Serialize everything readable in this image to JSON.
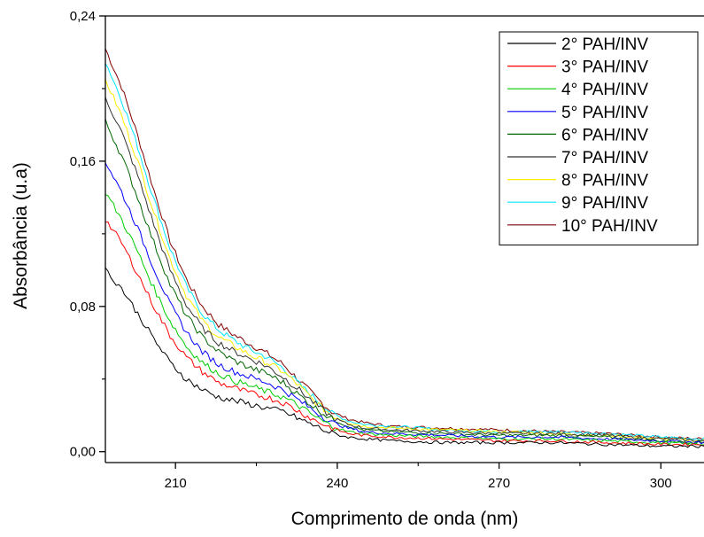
{
  "chart_data": {
    "type": "line",
    "title": "",
    "xlabel": "Comprimento de onda (nm)",
    "ylabel": "Absorbância (u.a)",
    "xlim": [
      197,
      308
    ],
    "ylim": [
      -0.006,
      0.24
    ],
    "x_ticks": [
      210,
      240,
      270,
      300
    ],
    "y_ticks": [
      0.0,
      0.08,
      0.16,
      0.24
    ],
    "x_tick_labels": [
      "210",
      "240",
      "270",
      "300"
    ],
    "y_tick_labels": [
      "0,00",
      "0,08",
      "0,16",
      "0,24"
    ],
    "grid": false,
    "legend_position": "top-right",
    "x": [
      197,
      200,
      203,
      206,
      209,
      212,
      215,
      218,
      221,
      224,
      227,
      230,
      233,
      236,
      239,
      242,
      245,
      250,
      260,
      270,
      280,
      290,
      300,
      308
    ],
    "series": [
      {
        "name": "2° PAH/INV",
        "color": "#000000",
        "values": [
          0.1,
          0.09,
          0.076,
          0.062,
          0.049,
          0.04,
          0.034,
          0.03,
          0.028,
          0.026,
          0.024,
          0.022,
          0.018,
          0.014,
          0.01,
          0.008,
          0.007,
          0.006,
          0.005,
          0.005,
          0.005,
          0.004,
          0.003,
          0.003
        ]
      },
      {
        "name": "3° PAH/INV",
        "color": "#ff0000",
        "values": [
          0.128,
          0.115,
          0.098,
          0.08,
          0.064,
          0.052,
          0.044,
          0.038,
          0.035,
          0.032,
          0.03,
          0.027,
          0.022,
          0.017,
          0.013,
          0.01,
          0.009,
          0.008,
          0.007,
          0.006,
          0.006,
          0.005,
          0.004,
          0.004
        ]
      },
      {
        "name": "4° PAH/INV",
        "color": "#00cc00",
        "values": [
          0.143,
          0.128,
          0.11,
          0.09,
          0.072,
          0.058,
          0.049,
          0.043,
          0.039,
          0.036,
          0.033,
          0.03,
          0.025,
          0.019,
          0.014,
          0.011,
          0.01,
          0.009,
          0.008,
          0.007,
          0.007,
          0.006,
          0.005,
          0.004
        ]
      },
      {
        "name": "5° PAH/INV",
        "color": "#0000ff",
        "values": [
          0.16,
          0.143,
          0.123,
          0.101,
          0.081,
          0.066,
          0.055,
          0.048,
          0.044,
          0.041,
          0.038,
          0.034,
          0.028,
          0.022,
          0.016,
          0.013,
          0.011,
          0.01,
          0.009,
          0.008,
          0.008,
          0.007,
          0.006,
          0.005
        ]
      },
      {
        "name": "6° PAH/INV",
        "color": "#006600",
        "values": [
          0.182,
          0.163,
          0.14,
          0.115,
          0.092,
          0.075,
          0.063,
          0.055,
          0.05,
          0.046,
          0.043,
          0.038,
          0.031,
          0.024,
          0.018,
          0.014,
          0.012,
          0.011,
          0.01,
          0.009,
          0.009,
          0.008,
          0.006,
          0.005
        ]
      },
      {
        "name": "7° PAH/INV",
        "color": "#333333",
        "values": [
          0.195,
          0.176,
          0.152,
          0.125,
          0.1,
          0.081,
          0.068,
          0.06,
          0.055,
          0.051,
          0.047,
          0.041,
          0.034,
          0.026,
          0.019,
          0.015,
          0.013,
          0.012,
          0.011,
          0.01,
          0.01,
          0.009,
          0.007,
          0.006
        ]
      },
      {
        "name": "8° PAH/INV",
        "color": "#ffee00",
        "values": [
          0.205,
          0.185,
          0.16,
          0.132,
          0.106,
          0.086,
          0.072,
          0.063,
          0.058,
          0.053,
          0.049,
          0.044,
          0.036,
          0.027,
          0.02,
          0.016,
          0.014,
          0.013,
          0.012,
          0.011,
          0.01,
          0.009,
          0.007,
          0.006
        ]
      },
      {
        "name": "9° PAH/INV",
        "color": "#00e5ff",
        "values": [
          0.215,
          0.194,
          0.168,
          0.139,
          0.112,
          0.091,
          0.076,
          0.067,
          0.061,
          0.056,
          0.052,
          0.046,
          0.037,
          0.029,
          0.021,
          0.017,
          0.015,
          0.014,
          0.012,
          0.011,
          0.011,
          0.01,
          0.008,
          0.007
        ]
      },
      {
        "name": "10° PAH/INV",
        "color": "#800000",
        "values": [
          0.222,
          0.201,
          0.174,
          0.144,
          0.116,
          0.095,
          0.08,
          0.07,
          0.064,
          0.059,
          0.054,
          0.048,
          0.039,
          0.03,
          0.022,
          0.018,
          0.016,
          0.014,
          0.013,
          0.012,
          0.011,
          0.01,
          0.008,
          0.007
        ]
      }
    ]
  }
}
